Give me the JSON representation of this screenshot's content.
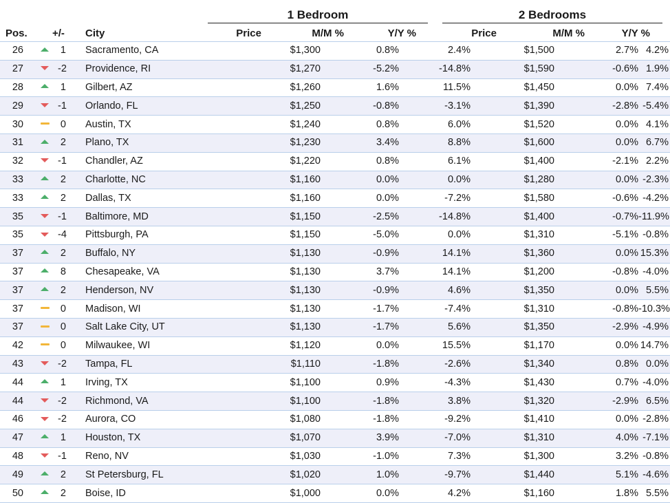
{
  "headers": {
    "group_1": "1 Bedroom",
    "group_2": "2 Bedrooms",
    "pos": "Pos.",
    "change": "+/-",
    "city": "City",
    "price_1": "Price",
    "mm_1": "M/M %",
    "yy_1": "Y/Y %",
    "price_2": "Price",
    "mm_2": "M/M %",
    "yy_2": "Y/Y %"
  },
  "colors": {
    "up": "#4cae6a",
    "down": "#e35b5b",
    "flat": "#f2b63a",
    "row_alt": "#eeeff9",
    "rule": "#b9cfea"
  },
  "rows": [
    {
      "pos": "26",
      "trend": "up",
      "change": "1",
      "city": "Sacramento, CA",
      "price1": "$1,300",
      "mm1": "0.8%",
      "yy1": "2.4%",
      "price2": "$1,500",
      "mm2": "2.7%",
      "yy2": "4.2%"
    },
    {
      "pos": "27",
      "trend": "down",
      "change": "-2",
      "city": "Providence, RI",
      "price1": "$1,270",
      "mm1": "-5.2%",
      "yy1": "-14.8%",
      "price2": "$1,590",
      "mm2": "-0.6%",
      "yy2": "1.9%"
    },
    {
      "pos": "28",
      "trend": "up",
      "change": "1",
      "city": "Gilbert, AZ",
      "price1": "$1,260",
      "mm1": "1.6%",
      "yy1": "11.5%",
      "price2": "$1,450",
      "mm2": "0.0%",
      "yy2": "7.4%"
    },
    {
      "pos": "29",
      "trend": "down",
      "change": "-1",
      "city": "Orlando, FL",
      "price1": "$1,250",
      "mm1": "-0.8%",
      "yy1": "-3.1%",
      "price2": "$1,390",
      "mm2": "-2.8%",
      "yy2": "-5.4%"
    },
    {
      "pos": "30",
      "trend": "flat",
      "change": "0",
      "city": "Austin, TX",
      "price1": "$1,240",
      "mm1": "0.8%",
      "yy1": "6.0%",
      "price2": "$1,520",
      "mm2": "0.0%",
      "yy2": "4.1%"
    },
    {
      "pos": "31",
      "trend": "up",
      "change": "2",
      "city": "Plano, TX",
      "price1": "$1,230",
      "mm1": "3.4%",
      "yy1": "8.8%",
      "price2": "$1,600",
      "mm2": "0.0%",
      "yy2": "6.7%"
    },
    {
      "pos": "32",
      "trend": "down",
      "change": "-1",
      "city": "Chandler, AZ",
      "price1": "$1,220",
      "mm1": "0.8%",
      "yy1": "6.1%",
      "price2": "$1,400",
      "mm2": "-2.1%",
      "yy2": "2.2%"
    },
    {
      "pos": "33",
      "trend": "up",
      "change": "2",
      "city": "Charlotte, NC",
      "price1": "$1,160",
      "mm1": "0.0%",
      "yy1": "0.0%",
      "price2": "$1,280",
      "mm2": "0.0%",
      "yy2": "-2.3%"
    },
    {
      "pos": "33",
      "trend": "up",
      "change": "2",
      "city": "Dallas, TX",
      "price1": "$1,160",
      "mm1": "0.0%",
      "yy1": "-7.2%",
      "price2": "$1,580",
      "mm2": "-0.6%",
      "yy2": "-4.2%"
    },
    {
      "pos": "35",
      "trend": "down",
      "change": "-1",
      "city": "Baltimore, MD",
      "price1": "$1,150",
      "mm1": "-2.5%",
      "yy1": "-14.8%",
      "price2": "$1,400",
      "mm2": "-0.7%",
      "yy2": "-11.9%"
    },
    {
      "pos": "35",
      "trend": "down",
      "change": "-4",
      "city": "Pittsburgh, PA",
      "price1": "$1,150",
      "mm1": "-5.0%",
      "yy1": "0.0%",
      "price2": "$1,310",
      "mm2": "-5.1%",
      "yy2": "-0.8%"
    },
    {
      "pos": "37",
      "trend": "up",
      "change": "2",
      "city": "Buffalo, NY",
      "price1": "$1,130",
      "mm1": "-0.9%",
      "yy1": "14.1%",
      "price2": "$1,360",
      "mm2": "0.0%",
      "yy2": "15.3%"
    },
    {
      "pos": "37",
      "trend": "up",
      "change": "8",
      "city": "Chesapeake, VA",
      "price1": "$1,130",
      "mm1": "3.7%",
      "yy1": "14.1%",
      "price2": "$1,200",
      "mm2": "-0.8%",
      "yy2": "-4.0%"
    },
    {
      "pos": "37",
      "trend": "up",
      "change": "2",
      "city": "Henderson, NV",
      "price1": "$1,130",
      "mm1": "-0.9%",
      "yy1": "4.6%",
      "price2": "$1,350",
      "mm2": "0.0%",
      "yy2": "5.5%"
    },
    {
      "pos": "37",
      "trend": "flat",
      "change": "0",
      "city": "Madison, WI",
      "price1": "$1,130",
      "mm1": "-1.7%",
      "yy1": "-7.4%",
      "price2": "$1,310",
      "mm2": "-0.8%",
      "yy2": "-10.3%"
    },
    {
      "pos": "37",
      "trend": "flat",
      "change": "0",
      "city": "Salt Lake City, UT",
      "price1": "$1,130",
      "mm1": "-1.7%",
      "yy1": "5.6%",
      "price2": "$1,350",
      "mm2": "-2.9%",
      "yy2": "-4.9%"
    },
    {
      "pos": "42",
      "trend": "flat",
      "change": "0",
      "city": "Milwaukee, WI",
      "price1": "$1,120",
      "mm1": "0.0%",
      "yy1": "15.5%",
      "price2": "$1,170",
      "mm2": "0.0%",
      "yy2": "14.7%"
    },
    {
      "pos": "43",
      "trend": "down",
      "change": "-2",
      "city": "Tampa, FL",
      "price1": "$1,110",
      "mm1": "-1.8%",
      "yy1": "-2.6%",
      "price2": "$1,340",
      "mm2": "0.8%",
      "yy2": "0.0%"
    },
    {
      "pos": "44",
      "trend": "up",
      "change": "1",
      "city": "Irving, TX",
      "price1": "$1,100",
      "mm1": "0.9%",
      "yy1": "-4.3%",
      "price2": "$1,430",
      "mm2": "0.7%",
      "yy2": "-4.0%"
    },
    {
      "pos": "44",
      "trend": "down",
      "change": "-2",
      "city": "Richmond, VA",
      "price1": "$1,100",
      "mm1": "-1.8%",
      "yy1": "3.8%",
      "price2": "$1,320",
      "mm2": "-2.9%",
      "yy2": "6.5%"
    },
    {
      "pos": "46",
      "trend": "down",
      "change": "-2",
      "city": "Aurora, CO",
      "price1": "$1,080",
      "mm1": "-1.8%",
      "yy1": "-9.2%",
      "price2": "$1,410",
      "mm2": "0.0%",
      "yy2": "-2.8%"
    },
    {
      "pos": "47",
      "trend": "up",
      "change": "1",
      "city": "Houston, TX",
      "price1": "$1,070",
      "mm1": "3.9%",
      "yy1": "-7.0%",
      "price2": "$1,310",
      "mm2": "4.0%",
      "yy2": "-7.1%"
    },
    {
      "pos": "48",
      "trend": "down",
      "change": "-1",
      "city": "Reno, NV",
      "price1": "$1,030",
      "mm1": "-1.0%",
      "yy1": "7.3%",
      "price2": "$1,300",
      "mm2": "3.2%",
      "yy2": "-0.8%"
    },
    {
      "pos": "49",
      "trend": "up",
      "change": "2",
      "city": "St Petersburg, FL",
      "price1": "$1,020",
      "mm1": "1.0%",
      "yy1": "-9.7%",
      "price2": "$1,440",
      "mm2": "5.1%",
      "yy2": "-4.6%"
    },
    {
      "pos": "50",
      "trend": "up",
      "change": "2",
      "city": "Boise, ID",
      "price1": "$1,000",
      "mm1": "0.0%",
      "yy1": "4.2%",
      "price2": "$1,160",
      "mm2": "1.8%",
      "yy2": "5.5%"
    }
  ]
}
